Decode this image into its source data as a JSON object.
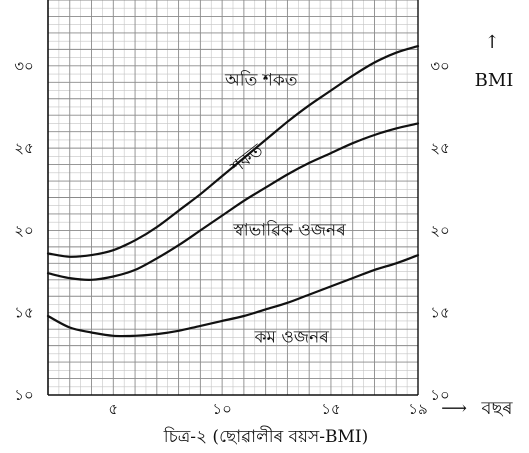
{
  "chart_data": {
    "type": "line",
    "title": "চিত্ৰ-২ (ছোৱালীৰ বয়স-BMI)",
    "ylabel": "BMI",
    "ylabel_arrow": "↑",
    "xlabel": "বছৰ",
    "xlabel_arrow": "⟶",
    "xlim": [
      2,
      19
    ],
    "ylim": [
      10,
      34
    ],
    "x_ticks": [
      {
        "value": 5,
        "label": "৫"
      },
      {
        "value": 10,
        "label": "১০"
      },
      {
        "value": 15,
        "label": "১৫"
      },
      {
        "value": 19,
        "label": "১৯"
      }
    ],
    "y_ticks": [
      {
        "value": 10,
        "label": "১০"
      },
      {
        "value": 15,
        "label": "১৫"
      },
      {
        "value": 20,
        "label": "২০"
      },
      {
        "value": 25,
        "label": "২৫"
      },
      {
        "value": 30,
        "label": "৩০"
      }
    ],
    "grid": true,
    "series": [
      {
        "x": [
          2,
          3,
          4,
          5,
          6,
          7,
          8,
          9,
          10,
          11,
          12,
          13,
          14,
          15,
          16,
          17,
          18,
          19
        ],
        "values": [
          14.8,
          14.1,
          13.8,
          13.6,
          13.6,
          13.7,
          13.9,
          14.2,
          14.5,
          14.8,
          15.2,
          15.6,
          16.1,
          16.6,
          17.1,
          17.6,
          18.0,
          18.5
        ]
      },
      {
        "x": [
          2,
          3,
          4,
          5,
          6,
          7,
          8,
          9,
          10,
          11,
          12,
          13,
          14,
          15,
          16,
          17,
          18,
          19
        ],
        "values": [
          17.4,
          17.1,
          17.0,
          17.2,
          17.6,
          18.3,
          19.1,
          20.0,
          20.9,
          21.8,
          22.6,
          23.4,
          24.1,
          24.7,
          25.3,
          25.8,
          26.2,
          26.5
        ]
      },
      {
        "x": [
          2,
          3,
          4,
          5,
          6,
          7,
          8,
          9,
          10,
          11,
          12,
          13,
          14,
          15,
          16,
          17,
          18,
          19
        ],
        "values": [
          18.6,
          18.4,
          18.5,
          18.8,
          19.4,
          20.2,
          21.2,
          22.2,
          23.3,
          24.4,
          25.5,
          26.6,
          27.6,
          28.5,
          29.4,
          30.2,
          30.8,
          31.2
        ]
      }
    ],
    "regions": [
      {
        "label": "অতি শকত",
        "x": 11.8,
        "y": 28.8,
        "angle": 0
      },
      {
        "label": "শকত",
        "x": 11.3,
        "y": 24.1,
        "angle": -38
      },
      {
        "label": "স্বাভাৱিক ওজনৰ",
        "x": 13.1,
        "y": 19.7,
        "angle": 0
      },
      {
        "label": "কম ওজনৰ",
        "x": 13.2,
        "y": 13.2,
        "angle": 0
      }
    ]
  }
}
